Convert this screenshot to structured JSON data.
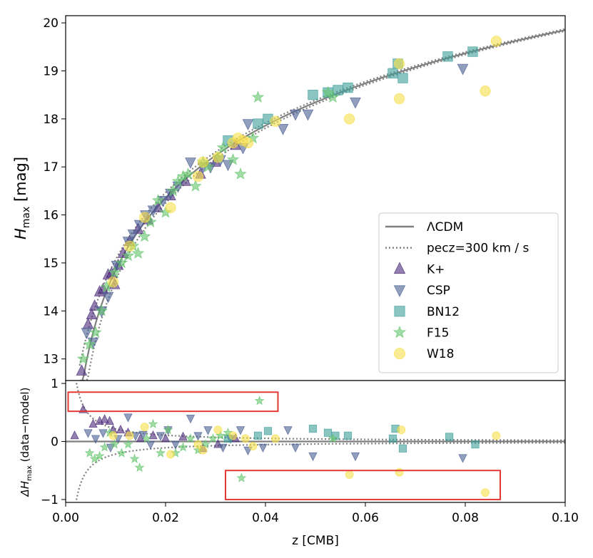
{
  "chart_data": [
    {
      "type": "scatter",
      "panel": "top",
      "xlim": [
        0.0,
        0.1
      ],
      "ylim": [
        12.55,
        20.15
      ],
      "ylabel_main": "H",
      "ylabel_sub": "max",
      "ylabel_unit": " [mag]",
      "yticks": [
        {
          "v": 13,
          "label": "13"
        },
        {
          "v": 14,
          "label": "14"
        },
        {
          "v": 15,
          "label": "15"
        },
        {
          "v": 16,
          "label": "16"
        },
        {
          "v": 17,
          "label": "17"
        },
        {
          "v": 18,
          "label": "18"
        },
        {
          "v": 19,
          "label": "19"
        },
        {
          "v": 20,
          "label": "20"
        }
      ],
      "legend_position": "lower-right",
      "legend": [
        {
          "label": "ΛCDM",
          "kind": "line"
        },
        {
          "label": "pecz=300 km / s",
          "kind": "dotted"
        },
        {
          "label": "K+",
          "kind": "triangle-up",
          "color": "#4b2a7a"
        },
        {
          "label": "CSP",
          "kind": "triangle-down",
          "color": "#4a5d93"
        },
        {
          "label": "BN12",
          "kind": "square",
          "color": "#3e9e9a"
        },
        {
          "label": "F15",
          "kind": "star",
          "color": "#62c46a"
        },
        {
          "label": "W18",
          "kind": "circle",
          "color": "#f7e04a"
        }
      ],
      "model_curve": "LCDM H_max(z) = 5*log10(c*z/H0) + 25 + M, with H(0.01)=14.85",
      "series": [
        {
          "name": "K+",
          "color": "#4b2a7a",
          "points": [
            [
              0.0032,
              12.75
            ],
            [
              0.0045,
              13.72
            ],
            [
              0.0052,
              13.92
            ],
            [
              0.0058,
              14.1
            ],
            [
              0.0068,
              14.4
            ],
            [
              0.0075,
              14.45
            ],
            [
              0.0085,
              14.75
            ],
            [
              0.0092,
              14.78
            ],
            [
              0.0098,
              14.55
            ],
            [
              0.0105,
              14.95
            ],
            [
              0.0115,
              15.2
            ],
            [
              0.0128,
              15.45
            ],
            [
              0.0145,
              15.7
            ],
            [
              0.0165,
              15.9
            ],
            [
              0.0185,
              16.15
            ],
            [
              0.021,
              16.4
            ],
            [
              0.024,
              16.7
            ],
            [
              0.027,
              16.85
            ],
            [
              0.03,
              17.1
            ],
            [
              0.034,
              17.45
            ]
          ]
        },
        {
          "name": "CSP",
          "color": "#4a5d93",
          "points": [
            [
              0.0042,
              13.55
            ],
            [
              0.0055,
              13.35
            ],
            [
              0.0072,
              14.0
            ],
            [
              0.0085,
              14.3
            ],
            [
              0.0102,
              14.95
            ],
            [
              0.0125,
              15.45
            ],
            [
              0.0135,
              15.6
            ],
            [
              0.0148,
              15.8
            ],
            [
              0.016,
              16.0
            ],
            [
              0.0175,
              16.1
            ],
            [
              0.0195,
              16.3
            ],
            [
              0.021,
              16.45
            ],
            [
              0.0225,
              16.6
            ],
            [
              0.025,
              17.1
            ],
            [
              0.0275,
              17.0
            ],
            [
              0.029,
              17.0
            ],
            [
              0.031,
              17.15
            ],
            [
              0.0325,
              17.05
            ],
            [
              0.0355,
              17.4
            ],
            [
              0.0365,
              17.9
            ],
            [
              0.0435,
              17.8
            ],
            [
              0.046,
              18.1
            ],
            [
              0.0485,
              18.1
            ],
            [
              0.058,
              18.35
            ],
            [
              0.0795,
              19.05
            ]
          ]
        },
        {
          "name": "BN12",
          "color": "#3e9e9a",
          "points": [
            [
              0.0325,
              17.55
            ],
            [
              0.0385,
              17.9
            ],
            [
              0.0405,
              18.0
            ],
            [
              0.0495,
              18.5
            ],
            [
              0.0525,
              18.55
            ],
            [
              0.0545,
              18.6
            ],
            [
              0.0565,
              18.65
            ],
            [
              0.0655,
              18.95
            ],
            [
              0.0665,
              19.15
            ],
            [
              0.0675,
              18.85
            ],
            [
              0.0765,
              19.3
            ],
            [
              0.0815,
              19.4
            ]
          ]
        },
        {
          "name": "F15",
          "color": "#62c46a",
          "points": [
            [
              0.0035,
              13.0
            ],
            [
              0.0048,
              13.3
            ],
            [
              0.006,
              13.55
            ],
            [
              0.0072,
              14.0
            ],
            [
              0.0082,
              14.5
            ],
            [
              0.0098,
              14.8
            ],
            [
              0.0112,
              15.0
            ],
            [
              0.0125,
              15.15
            ],
            [
              0.0135,
              15.35
            ],
            [
              0.0145,
              15.2
            ],
            [
              0.0158,
              15.55
            ],
            [
              0.017,
              15.85
            ],
            [
              0.0185,
              16.3
            ],
            [
              0.02,
              16.05
            ],
            [
              0.0215,
              16.5
            ],
            [
              0.0225,
              16.7
            ],
            [
              0.0235,
              16.8
            ],
            [
              0.0245,
              16.85
            ],
            [
              0.026,
              16.6
            ],
            [
              0.0275,
              17.1
            ],
            [
              0.0285,
              17.0
            ],
            [
              0.0305,
              17.2
            ],
            [
              0.0315,
              17.4
            ],
            [
              0.0335,
              17.15
            ],
            [
              0.035,
              16.85
            ],
            [
              0.0375,
              17.6
            ],
            [
              0.0385,
              18.45
            ],
            [
              0.0525,
              18.55
            ],
            [
              0.0535,
              18.45
            ]
          ]
        },
        {
          "name": "W18",
          "color": "#f7e04a",
          "points": [
            [
              0.0095,
              14.6
            ],
            [
              0.0128,
              15.35
            ],
            [
              0.0158,
              15.95
            ],
            [
              0.021,
              16.15
            ],
            [
              0.0265,
              16.8
            ],
            [
              0.0275,
              17.1
            ],
            [
              0.0305,
              17.2
            ],
            [
              0.0335,
              17.5
            ],
            [
              0.0345,
              17.6
            ],
            [
              0.0355,
              17.55
            ],
            [
              0.0365,
              17.5
            ],
            [
              0.042,
              17.95
            ],
            [
              0.0568,
              18.0
            ],
            [
              0.0668,
              18.42
            ],
            [
              0.0668,
              19.15
            ],
            [
              0.084,
              18.58
            ],
            [
              0.0862,
              19.62
            ]
          ]
        }
      ]
    },
    {
      "type": "scatter",
      "panel": "bottom",
      "xlim": [
        0.0,
        0.1
      ],
      "ylim": [
        -1.05,
        1.05
      ],
      "xlabel": "z [CMB]",
      "ylabel_main": "ΔH",
      "ylabel_sub": "max",
      "ylabel_unit": " (data−model)",
      "xticks": [
        {
          "v": 0.0,
          "label": "0.00"
        },
        {
          "v": 0.02,
          "label": "0.02"
        },
        {
          "v": 0.04,
          "label": "0.04"
        },
        {
          "v": 0.06,
          "label": "0.06"
        },
        {
          "v": 0.08,
          "label": "0.08"
        },
        {
          "v": 0.1,
          "label": "0.10"
        }
      ],
      "yticks": [
        {
          "v": 1,
          "label": "1"
        },
        {
          "v": 0,
          "label": "0"
        },
        {
          "v": -1,
          "label": "−1"
        }
      ],
      "highlight_boxes": [
        {
          "x0": 0.0005,
          "x1": 0.0425,
          "y0": 0.52,
          "y1": 0.85,
          "color": "#e53935"
        },
        {
          "x0": 0.032,
          "x1": 0.087,
          "y0": -1.0,
          "y1": -0.5,
          "color": "#e53935"
        }
      ],
      "series": [
        {
          "name": "K+",
          "color": "#4b2a7a",
          "points": [
            [
              0.0018,
              0.1
            ],
            [
              0.0035,
              0.55
            ],
            [
              0.0055,
              0.3
            ],
            [
              0.0068,
              0.35
            ],
            [
              0.0078,
              0.38
            ],
            [
              0.0088,
              0.35
            ],
            [
              0.0095,
              0.2
            ],
            [
              0.011,
              0.2
            ],
            [
              0.0125,
              0.15
            ],
            [
              0.015,
              0.05
            ],
            [
              0.0175,
              0.1
            ],
            [
              0.02,
              0.05
            ],
            [
              0.0235,
              0.08
            ],
            [
              0.0275,
              -0.12
            ],
            [
              0.0305,
              -0.05
            ],
            [
              0.034,
              0.05
            ]
          ]
        },
        {
          "name": "CSP",
          "color": "#4a5d93",
          "points": [
            [
              0.0045,
              0.15
            ],
            [
              0.006,
              0.05
            ],
            [
              0.0075,
              0.15
            ],
            [
              0.009,
              -0.1
            ],
            [
              0.0105,
              0.05
            ],
            [
              0.0125,
              0.42
            ],
            [
              0.014,
              0.1
            ],
            [
              0.0155,
              0.12
            ],
            [
              0.017,
              -0.05
            ],
            [
              0.019,
              0.1
            ],
            [
              0.0205,
              0.2
            ],
            [
              0.022,
              -0.05
            ],
            [
              0.025,
              0.4
            ],
            [
              0.0265,
              0.1
            ],
            [
              0.0285,
              0.2
            ],
            [
              0.0315,
              -0.1
            ],
            [
              0.033,
              0.05
            ],
            [
              0.035,
              0.2
            ],
            [
              0.0365,
              -0.15
            ],
            [
              0.0395,
              -0.1
            ],
            [
              0.0445,
              0.2
            ],
            [
              0.046,
              -0.1
            ],
            [
              0.0495,
              -0.25
            ],
            [
              0.058,
              -0.25
            ],
            [
              0.0795,
              -0.28
            ]
          ]
        },
        {
          "name": "BN12",
          "color": "#3e9e9a",
          "points": [
            [
              0.0325,
              0.05
            ],
            [
              0.0385,
              0.1
            ],
            [
              0.0405,
              0.18
            ],
            [
              0.0495,
              0.22
            ],
            [
              0.0525,
              0.15
            ],
            [
              0.054,
              0.1
            ],
            [
              0.0565,
              0.1
            ],
            [
              0.0655,
              0.05
            ],
            [
              0.066,
              0.22
            ],
            [
              0.0675,
              -0.12
            ],
            [
              0.0768,
              0.08
            ],
            [
              0.082,
              -0.05
            ]
          ]
        },
        {
          "name": "F15",
          "color": "#62c46a",
          "points": [
            [
              0.0048,
              -0.2
            ],
            [
              0.0058,
              -0.3
            ],
            [
              0.0068,
              -0.25
            ],
            [
              0.0078,
              -0.1
            ],
            [
              0.0088,
              0.15
            ],
            [
              0.0098,
              -0.05
            ],
            [
              0.0112,
              -0.2
            ],
            [
              0.0125,
              -0.05
            ],
            [
              0.0138,
              -0.3
            ],
            [
              0.0148,
              -0.45
            ],
            [
              0.0162,
              0.05
            ],
            [
              0.0175,
              0.3
            ],
            [
              0.019,
              -0.2
            ],
            [
              0.0205,
              0.2
            ],
            [
              0.022,
              -0.2
            ],
            [
              0.0235,
              -0.1
            ],
            [
              0.025,
              0.05
            ],
            [
              0.0265,
              -0.15
            ],
            [
              0.028,
              -0.05
            ],
            [
              0.0295,
              0.05
            ],
            [
              0.031,
              0.1
            ],
            [
              0.0325,
              0.15
            ],
            [
              0.0352,
              -0.63
            ],
            [
              0.0388,
              0.7
            ],
            [
              0.0535,
              0.05
            ]
          ]
        },
        {
          "name": "W18",
          "color": "#f7e04a",
          "points": [
            [
              0.0095,
              0.1
            ],
            [
              0.0128,
              0.1
            ],
            [
              0.0158,
              0.25
            ],
            [
              0.021,
              -0.22
            ],
            [
              0.0265,
              -0.05
            ],
            [
              0.0275,
              -0.15
            ],
            [
              0.0305,
              0.2
            ],
            [
              0.0335,
              0.1
            ],
            [
              0.036,
              0.05
            ],
            [
              0.0375,
              -0.08
            ],
            [
              0.042,
              0.05
            ],
            [
              0.0568,
              -0.57
            ],
            [
              0.0668,
              -0.53
            ],
            [
              0.0672,
              0.2
            ],
            [
              0.084,
              -0.88
            ],
            [
              0.0862,
              0.1
            ]
          ]
        }
      ]
    }
  ]
}
